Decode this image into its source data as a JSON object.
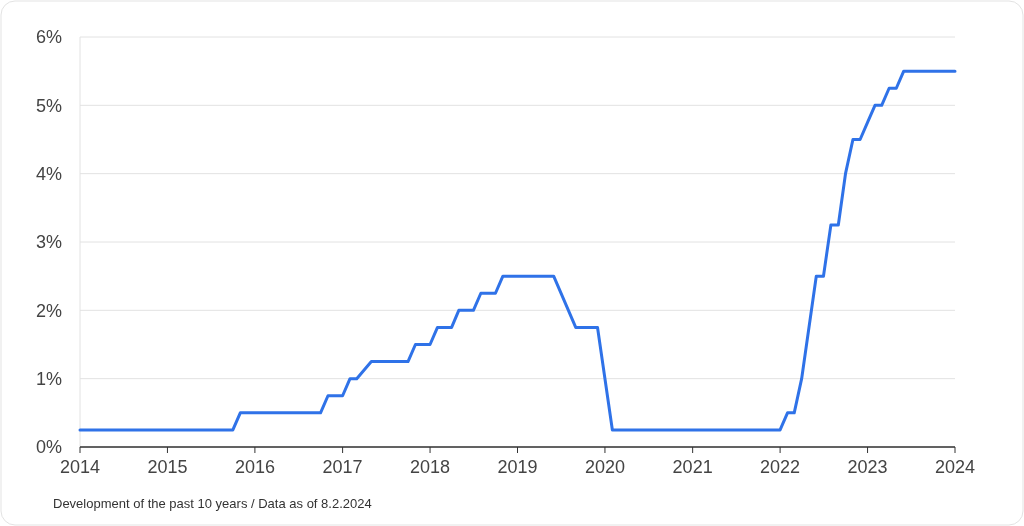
{
  "chart_data": {
    "type": "line",
    "x": [
      "2014-01",
      "2015-10",
      "2015-11",
      "2016-10",
      "2016-11",
      "2017-01",
      "2017-02",
      "2017-03",
      "2017-05",
      "2017-10",
      "2017-11",
      "2018-01",
      "2018-02",
      "2018-04",
      "2018-05",
      "2018-07",
      "2018-08",
      "2018-10",
      "2018-11",
      "2019-06",
      "2019-09",
      "2019-12",
      "2020-02",
      "2022-01",
      "2022-02",
      "2022-03",
      "2022-04",
      "2022-06",
      "2022-07",
      "2022-08",
      "2022-09",
      "2022-10",
      "2022-11",
      "2022-12",
      "2023-01",
      "2023-02",
      "2023-03",
      "2023-04",
      "2023-05",
      "2023-06",
      "2024-01"
    ],
    "series": [
      {
        "color": "#2f72e8",
        "values": [
          0.25,
          0.25,
          0.5,
          0.5,
          0.75,
          0.75,
          1.0,
          1.0,
          1.25,
          1.25,
          1.5,
          1.5,
          1.75,
          1.75,
          2.0,
          2.0,
          2.25,
          2.25,
          2.5,
          2.5,
          1.75,
          1.75,
          0.25,
          0.25,
          0.5,
          0.5,
          1.0,
          2.5,
          2.5,
          3.25,
          3.25,
          4.0,
          4.5,
          4.5,
          4.75,
          5.0,
          5.0,
          5.25,
          5.25,
          5.5,
          5.5
        ]
      }
    ],
    "xlim": [
      "2014-01",
      "2024-01"
    ],
    "xticks": [
      {
        "value": "2014",
        "label": "2014"
      },
      {
        "value": "2015",
        "label": "2015"
      },
      {
        "value": "2016",
        "label": "2016"
      },
      {
        "value": "2017",
        "label": "2017"
      },
      {
        "value": "2018",
        "label": "2018"
      },
      {
        "value": "2019",
        "label": "2019"
      },
      {
        "value": "2020",
        "label": "2020"
      },
      {
        "value": "2021",
        "label": "2021"
      },
      {
        "value": "2022",
        "label": "2022"
      },
      {
        "value": "2023",
        "label": "2023"
      },
      {
        "value": "2024",
        "label": "2024"
      }
    ],
    "ylim": [
      0,
      6
    ],
    "yticks": [
      {
        "value": 0,
        "label": "0%"
      },
      {
        "value": 1,
        "label": "1%"
      },
      {
        "value": 2,
        "label": "2%"
      },
      {
        "value": 3,
        "label": "3%"
      },
      {
        "value": 4,
        "label": "4%"
      },
      {
        "value": 5,
        "label": "5%"
      },
      {
        "value": 6,
        "label": "6%"
      }
    ],
    "grid": "y",
    "line_style": "solid",
    "marker": "none",
    "annotations": [
      "Development of the past 10 years / Data as of 8.2.2024"
    ]
  }
}
